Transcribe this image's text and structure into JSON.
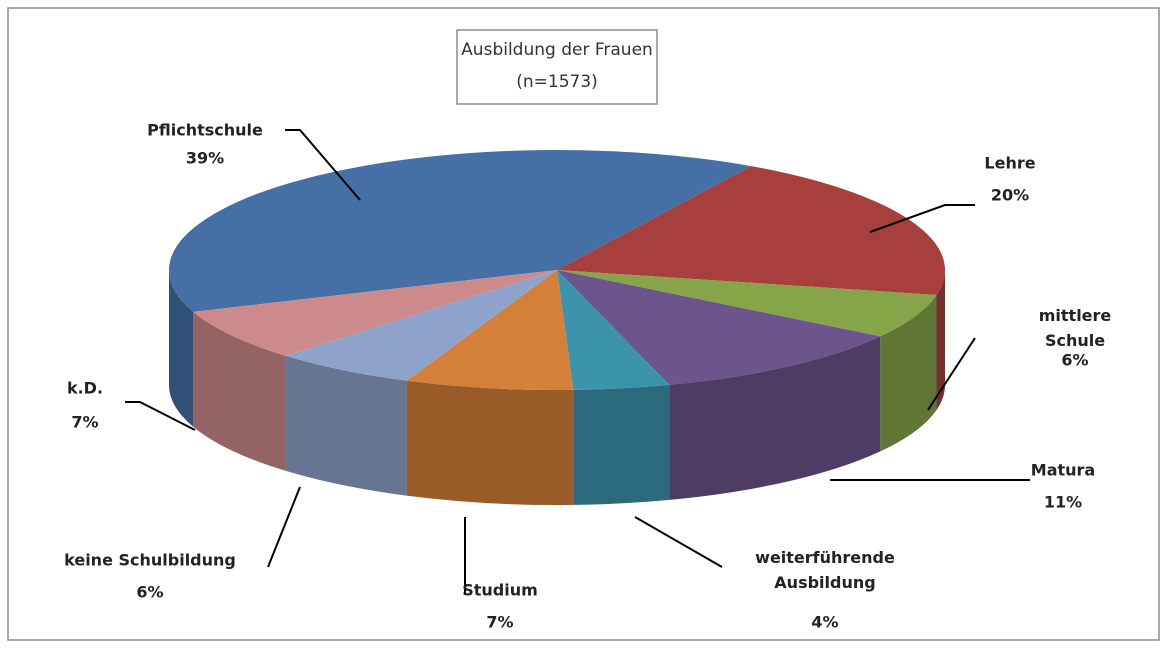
{
  "chart_data": {
    "type": "pie",
    "title": "Ausbildung der Frauen",
    "subtitle": "(n=1573)",
    "categories": [
      "Pflichtschule",
      "Lehre",
      "mittlere Schule",
      "Matura",
      "weiterführende\nAusbildung",
      "Studium",
      "keine Schulbildung",
      "k.D."
    ],
    "values": [
      39,
      20,
      6,
      11,
      4,
      7,
      6,
      7
    ],
    "value_labels": [
      "39%",
      "20%",
      "6%",
      "11%",
      "4%",
      "7%",
      "6%",
      "7%"
    ],
    "colors": [
      "#4470a6",
      "#a7403d",
      "#86a448",
      "#6c548c",
      "#3c94ac",
      "#d5803a",
      "#8ea3cb",
      "#cc8b8a"
    ]
  }
}
